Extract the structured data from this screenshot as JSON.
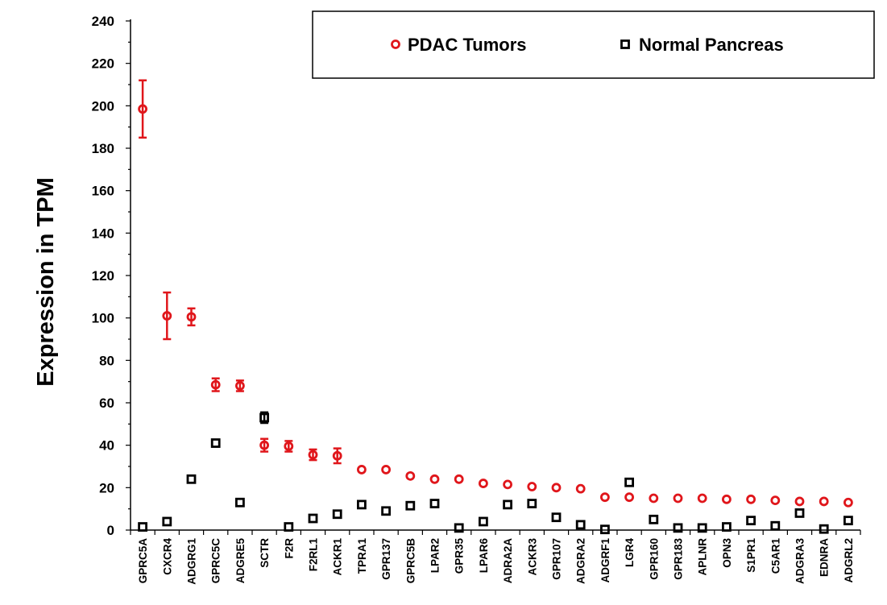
{
  "chart_data": {
    "type": "scatter",
    "title": "",
    "xlabel": "",
    "ylabel": "Expression in TPM",
    "ylim": [
      0,
      240
    ],
    "yticks": [
      0,
      20,
      40,
      60,
      80,
      100,
      120,
      140,
      160,
      180,
      200,
      220,
      240
    ],
    "grid": false,
    "legend_position": "top-right",
    "categories": [
      "GPRC5A",
      "CXCR4",
      "ADGRG1",
      "GPRC5C",
      "ADGRE5",
      "SCTR",
      "F2R",
      "F2RL1",
      "ACKR1",
      "TPRA1",
      "GPR137",
      "GPRC5B",
      "LPAR2",
      "GPR35",
      "LPAR6",
      "ADRA2A",
      "ACKR3",
      "GPR107",
      "ADGRA2",
      "ADGRF1",
      "LGR4",
      "GPR160",
      "GPR183",
      "APLNR",
      "OPN3",
      "S1PR1",
      "C5AR1",
      "ADGRA3",
      "EDNRA",
      "ADGRL2"
    ],
    "series": [
      {
        "name": "PDAC Tumors",
        "marker": "circle",
        "color": "#e0161b",
        "values": [
          198.5,
          101,
          100.5,
          68.5,
          68,
          40,
          39.5,
          35.5,
          35,
          28.5,
          28.5,
          25.5,
          24,
          24,
          22,
          21.5,
          20.5,
          20,
          19.5,
          15.5,
          15.5,
          15,
          15,
          15,
          14.5,
          14.5,
          14,
          13.5,
          13.5,
          13
        ],
        "errors": [
          13.5,
          11,
          4,
          3,
          2.5,
          3,
          2.5,
          2.5,
          3.5,
          1.2,
          1.2,
          1.2,
          1,
          1,
          1,
          1,
          1,
          0.8,
          0.8,
          0.8,
          0.8,
          0.8,
          0.8,
          0.8,
          0.8,
          0.8,
          0.8,
          0.8,
          0.8,
          0.8
        ]
      },
      {
        "name": "Normal Pancreas",
        "marker": "square",
        "color": "#000000",
        "values": [
          1.5,
          4,
          24,
          41,
          13,
          53,
          1.5,
          5.5,
          7.5,
          12,
          9,
          11.5,
          12.5,
          1,
          4,
          12,
          12.5,
          6,
          2.5,
          0.3,
          22.5,
          5,
          1,
          1,
          1.5,
          4.5,
          2,
          8,
          0.5,
          4.5
        ],
        "errors": [
          0.5,
          0.8,
          1,
          1.2,
          1,
          2.5,
          0.4,
          0.8,
          0.8,
          1,
          0.8,
          0.8,
          0.8,
          0.3,
          0.6,
          0.8,
          0.8,
          0.8,
          0.4,
          0.2,
          1,
          0.8,
          0.3,
          0.3,
          0.4,
          0.6,
          0.4,
          0.8,
          0.2,
          0.6
        ]
      }
    ]
  }
}
